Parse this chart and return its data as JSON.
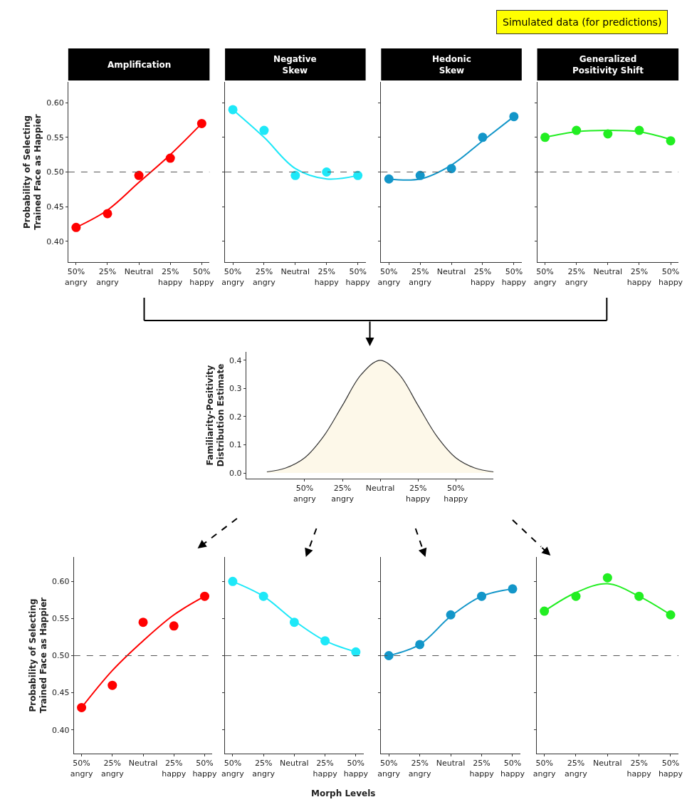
{
  "chart_data": [
    {
      "type": "scatter",
      "title": "Amplification",
      "ylabel": "Probability of Selecting\nTrained Face as Happier",
      "annotations": [
        "Simulated data (for predictions)"
      ],
      "categories": [
        "50%\nangry",
        "25%\nangry",
        "Neutral",
        "25%\nhappy",
        "50%\nhappy"
      ],
      "ylim": [
        0.37,
        0.63
      ],
      "yticks": [
        {
          "value": 0.4,
          "label": "0.40"
        },
        {
          "value": 0.45,
          "label": "0.45"
        },
        {
          "value": 0.5,
          "label": "0.50"
        },
        {
          "value": 0.55,
          "label": "0.55"
        },
        {
          "value": 0.6,
          "label": "0.60"
        }
      ],
      "ref_lines": [
        {
          "axis": "y",
          "value": 0.5,
          "color": "#555555",
          "line_style": "dashed"
        }
      ],
      "series": [
        {
          "type": "scatter",
          "marker": "circle",
          "color": "#ff0000",
          "values": [
            0.42,
            0.44,
            0.495,
            0.52,
            0.57
          ]
        },
        {
          "type": "line",
          "marker": "none",
          "color": "#ff0000",
          "values": [
            0.42,
            0.445,
            0.485,
            0.525,
            0.57
          ]
        }
      ]
    },
    {
      "type": "scatter",
      "title": "Negative\nSkew",
      "tick_labels": "x",
      "categories": [
        "50%\nangry",
        "25%\nangry",
        "Neutral",
        "25%\nhappy",
        "50%\nhappy"
      ],
      "ylim": [
        0.37,
        0.63
      ],
      "yticks": [
        {
          "value": 0.4,
          "label": null
        },
        {
          "value": 0.45,
          "label": null
        },
        {
          "value": 0.5,
          "label": null
        },
        {
          "value": 0.55,
          "label": null
        },
        {
          "value": 0.6,
          "label": null
        }
      ],
      "ref_lines": [
        {
          "axis": "y",
          "value": 0.5,
          "color": "#555555",
          "line_style": "dashed"
        }
      ],
      "series": [
        {
          "type": "scatter",
          "marker": "circle",
          "color": "#1ee8f8",
          "values": [
            0.59,
            0.56,
            0.495,
            0.5,
            0.495
          ]
        },
        {
          "type": "line",
          "marker": "none",
          "color": "#1ee8f8",
          "values": [
            0.59,
            0.55,
            0.505,
            0.49,
            0.495
          ]
        }
      ]
    },
    {
      "type": "scatter",
      "title": "Hedonic\nSkew",
      "tick_labels": "x",
      "categories": [
        "50%\nangry",
        "25%\nangry",
        "Neutral",
        "25%\nhappy",
        "50%\nhappy"
      ],
      "ylim": [
        0.37,
        0.63
      ],
      "yticks": [
        {
          "value": 0.4,
          "label": null
        },
        {
          "value": 0.45,
          "label": null
        },
        {
          "value": 0.5,
          "label": null
        },
        {
          "value": 0.55,
          "label": null
        },
        {
          "value": 0.6,
          "label": null
        }
      ],
      "ref_lines": [
        {
          "axis": "y",
          "value": 0.5,
          "color": "#555555",
          "line_style": "dashed"
        }
      ],
      "series": [
        {
          "type": "scatter",
          "marker": "circle",
          "color": "#1396c9",
          "values": [
            0.49,
            0.495,
            0.505,
            0.55,
            0.58
          ]
        },
        {
          "type": "line",
          "marker": "none",
          "color": "#1396c9",
          "values": [
            0.49,
            0.49,
            0.51,
            0.545,
            0.58
          ]
        }
      ]
    },
    {
      "type": "scatter",
      "title": "Generalized\nPositivity Shift",
      "tick_labels": "x",
      "categories": [
        "50%\nangry",
        "25%\nangry",
        "Neutral",
        "25%\nhappy",
        "50%\nhappy"
      ],
      "ylim": [
        0.37,
        0.63
      ],
      "yticks": [
        {
          "value": 0.4,
          "label": null
        },
        {
          "value": 0.45,
          "label": null
        },
        {
          "value": 0.5,
          "label": null
        },
        {
          "value": 0.55,
          "label": null
        },
        {
          "value": 0.6,
          "label": null
        }
      ],
      "ref_lines": [
        {
          "axis": "y",
          "value": 0.5,
          "color": "#555555",
          "line_style": "dashed"
        }
      ],
      "series": [
        {
          "type": "scatter",
          "marker": "circle",
          "color": "#22ee22",
          "values": [
            0.55,
            0.56,
            0.555,
            0.56,
            0.545
          ]
        },
        {
          "type": "line",
          "marker": "none",
          "color": "#22ee22",
          "values": [
            0.55,
            0.558,
            0.56,
            0.558,
            0.547
          ]
        }
      ]
    },
    {
      "type": "area",
      "ylabel": "Familiarity-Positivity\nDistribution Estimate",
      "categories": [
        null,
        null,
        "50%\nangry",
        null,
        "25%\nangry",
        null,
        "Neutral",
        null,
        "25%\nhappy",
        null,
        "50%\nhappy",
        null,
        null
      ],
      "ylim": [
        -0.02,
        0.43
      ],
      "yticks": [
        {
          "value": 0,
          "label": "0.0"
        },
        {
          "value": 0.1,
          "label": "0.1"
        },
        {
          "value": 0.2,
          "label": "0.2"
        },
        {
          "value": 0.3,
          "label": "0.3"
        },
        {
          "value": 0.4,
          "label": "0.4"
        }
      ],
      "series": [
        {
          "color": "#fdf8e9",
          "values": [
            0.004,
            0.018,
            0.054,
            0.13,
            0.24,
            0.35,
            0.4,
            0.35,
            0.24,
            0.13,
            0.054,
            0.018,
            0.004
          ]
        }
      ]
    },
    {
      "type": "scatter",
      "ylabel": "Probability of Selecting\nTrained Face as Happier",
      "categories": [
        "50%\nangry",
        "25%\nangry",
        "Neutral",
        "25%\nhappy",
        "50%\nhappy"
      ],
      "ylim": [
        0.368,
        0.633
      ],
      "yticks": [
        {
          "value": 0.4,
          "label": "0.40"
        },
        {
          "value": 0.45,
          "label": "0.45"
        },
        {
          "value": 0.5,
          "label": "0.50"
        },
        {
          "value": 0.55,
          "label": "0.55"
        },
        {
          "value": 0.6,
          "label": "0.60"
        }
      ],
      "ref_lines": [
        {
          "axis": "y",
          "value": 0.5,
          "color": "#555555",
          "line_style": "dashed"
        }
      ],
      "series": [
        {
          "type": "scatter",
          "marker": "circle",
          "color": "#ff0000",
          "values": [
            0.43,
            0.46,
            0.545,
            0.54,
            0.58
          ]
        },
        {
          "type": "line",
          "marker": "none",
          "color": "#ff0000",
          "values": [
            0.43,
            0.48,
            0.52,
            0.555,
            0.58
          ]
        }
      ]
    },
    {
      "type": "scatter",
      "tick_labels": "x",
      "xlabel": "Morph Levels",
      "categories": [
        "50%\nangry",
        "25%\nangry",
        "Neutral",
        "25%\nhappy",
        "50%\nhappy"
      ],
      "ylim": [
        0.368,
        0.633
      ],
      "yticks": [
        {
          "value": 0.4,
          "label": null
        },
        {
          "value": 0.45,
          "label": null
        },
        {
          "value": 0.5,
          "label": null
        },
        {
          "value": 0.55,
          "label": null
        },
        {
          "value": 0.6,
          "label": null
        }
      ],
      "ref_lines": [
        {
          "axis": "y",
          "value": 0.5,
          "color": "#555555",
          "line_style": "dashed"
        }
      ],
      "series": [
        {
          "type": "scatter",
          "marker": "circle",
          "color": "#1ee8f8",
          "values": [
            0.6,
            0.58,
            0.545,
            0.52,
            0.505
          ]
        },
        {
          "type": "line",
          "marker": "none",
          "color": "#1ee8f8",
          "values": [
            0.6,
            0.58,
            0.547,
            0.52,
            0.505
          ]
        }
      ]
    },
    {
      "type": "scatter",
      "tick_labels": "x",
      "categories": [
        "50%\nangry",
        "25%\nangry",
        "Neutral",
        "25%\nhappy",
        "50%\nhappy"
      ],
      "ylim": [
        0.368,
        0.633
      ],
      "yticks": [
        {
          "value": 0.4,
          "label": null
        },
        {
          "value": 0.45,
          "label": null
        },
        {
          "value": 0.5,
          "label": null
        },
        {
          "value": 0.55,
          "label": null
        },
        {
          "value": 0.6,
          "label": null
        }
      ],
      "ref_lines": [
        {
          "axis": "y",
          "value": 0.5,
          "color": "#555555",
          "line_style": "dashed"
        }
      ],
      "series": [
        {
          "type": "scatter",
          "marker": "circle",
          "color": "#1396c9",
          "values": [
            0.5,
            0.515,
            0.555,
            0.58,
            0.59
          ]
        },
        {
          "type": "line",
          "marker": "none",
          "color": "#1396c9",
          "values": [
            0.5,
            0.515,
            0.553,
            0.58,
            0.59
          ]
        }
      ]
    },
    {
      "type": "scatter",
      "tick_labels": "x",
      "categories": [
        "50%\nangry",
        "25%\nangry",
        "Neutral",
        "25%\nhappy",
        "50%\nhappy"
      ],
      "ylim": [
        0.368,
        0.633
      ],
      "yticks": [
        {
          "value": 0.4,
          "label": null
        },
        {
          "value": 0.45,
          "label": null
        },
        {
          "value": 0.5,
          "label": null
        },
        {
          "value": 0.55,
          "label": null
        },
        {
          "value": 0.6,
          "label": null
        }
      ],
      "ref_lines": [
        {
          "axis": "y",
          "value": 0.5,
          "color": "#555555",
          "line_style": "dashed"
        }
      ],
      "series": [
        {
          "type": "scatter",
          "marker": "circle",
          "color": "#22ee22",
          "values": [
            0.56,
            0.58,
            0.605,
            0.58,
            0.555
          ]
        },
        {
          "type": "line",
          "marker": "none",
          "color": "#22ee22",
          "values": [
            0.56,
            0.585,
            0.597,
            0.58,
            0.555
          ]
        }
      ]
    }
  ]
}
